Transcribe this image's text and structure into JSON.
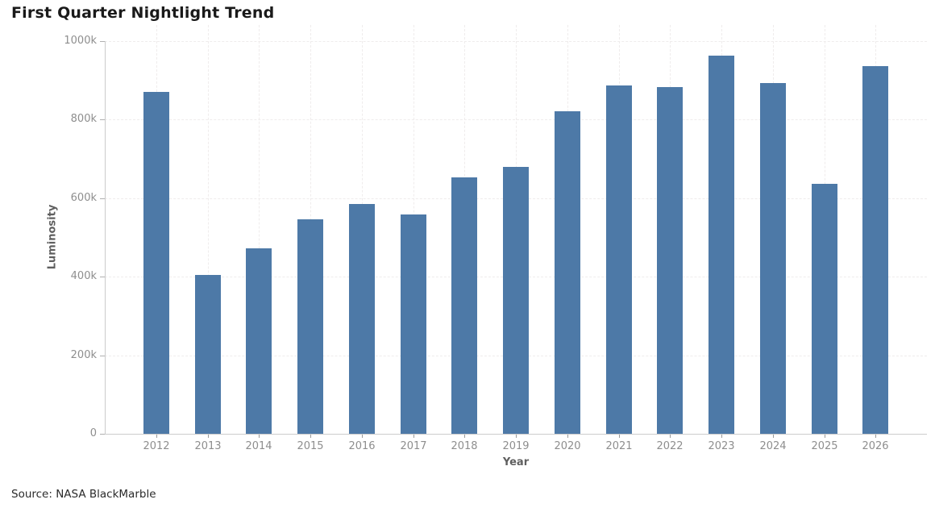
{
  "title": "First Quarter Nightlight Trend",
  "source": "Source: NASA BlackMarble",
  "colors": {
    "bar": "#4d79a7",
    "grid": "#efecec",
    "axis_line": "#cccccc",
    "tick_text": "#8e8e8e",
    "axis_title_text": "#5f5f5f",
    "title_text": "#1a1a1a"
  },
  "chart_data": {
    "type": "bar",
    "title": "First Quarter Nightlight Trend",
    "xlabel": "Year",
    "ylabel": "Luminosity",
    "categories": [
      "2012",
      "2013",
      "2014",
      "2015",
      "2016",
      "2017",
      "2018",
      "2019",
      "2020",
      "2021",
      "2022",
      "2023",
      "2024",
      "2025",
      "2026"
    ],
    "values": [
      870000,
      405000,
      472000,
      546000,
      585000,
      559000,
      653000,
      680000,
      821000,
      887000,
      883000,
      963000,
      893000,
      637000,
      936000
    ],
    "ylim": [
      0,
      1000000
    ],
    "ytick_values": [
      0,
      200000,
      400000,
      600000,
      800000,
      1000000
    ],
    "ytick_labels": [
      "0",
      "200k",
      "400k",
      "600k",
      "800k",
      "1000k"
    ],
    "grid": true,
    "grid_style": "dashed",
    "legend": "none",
    "annotation": "Source: NASA BlackMarble"
  }
}
